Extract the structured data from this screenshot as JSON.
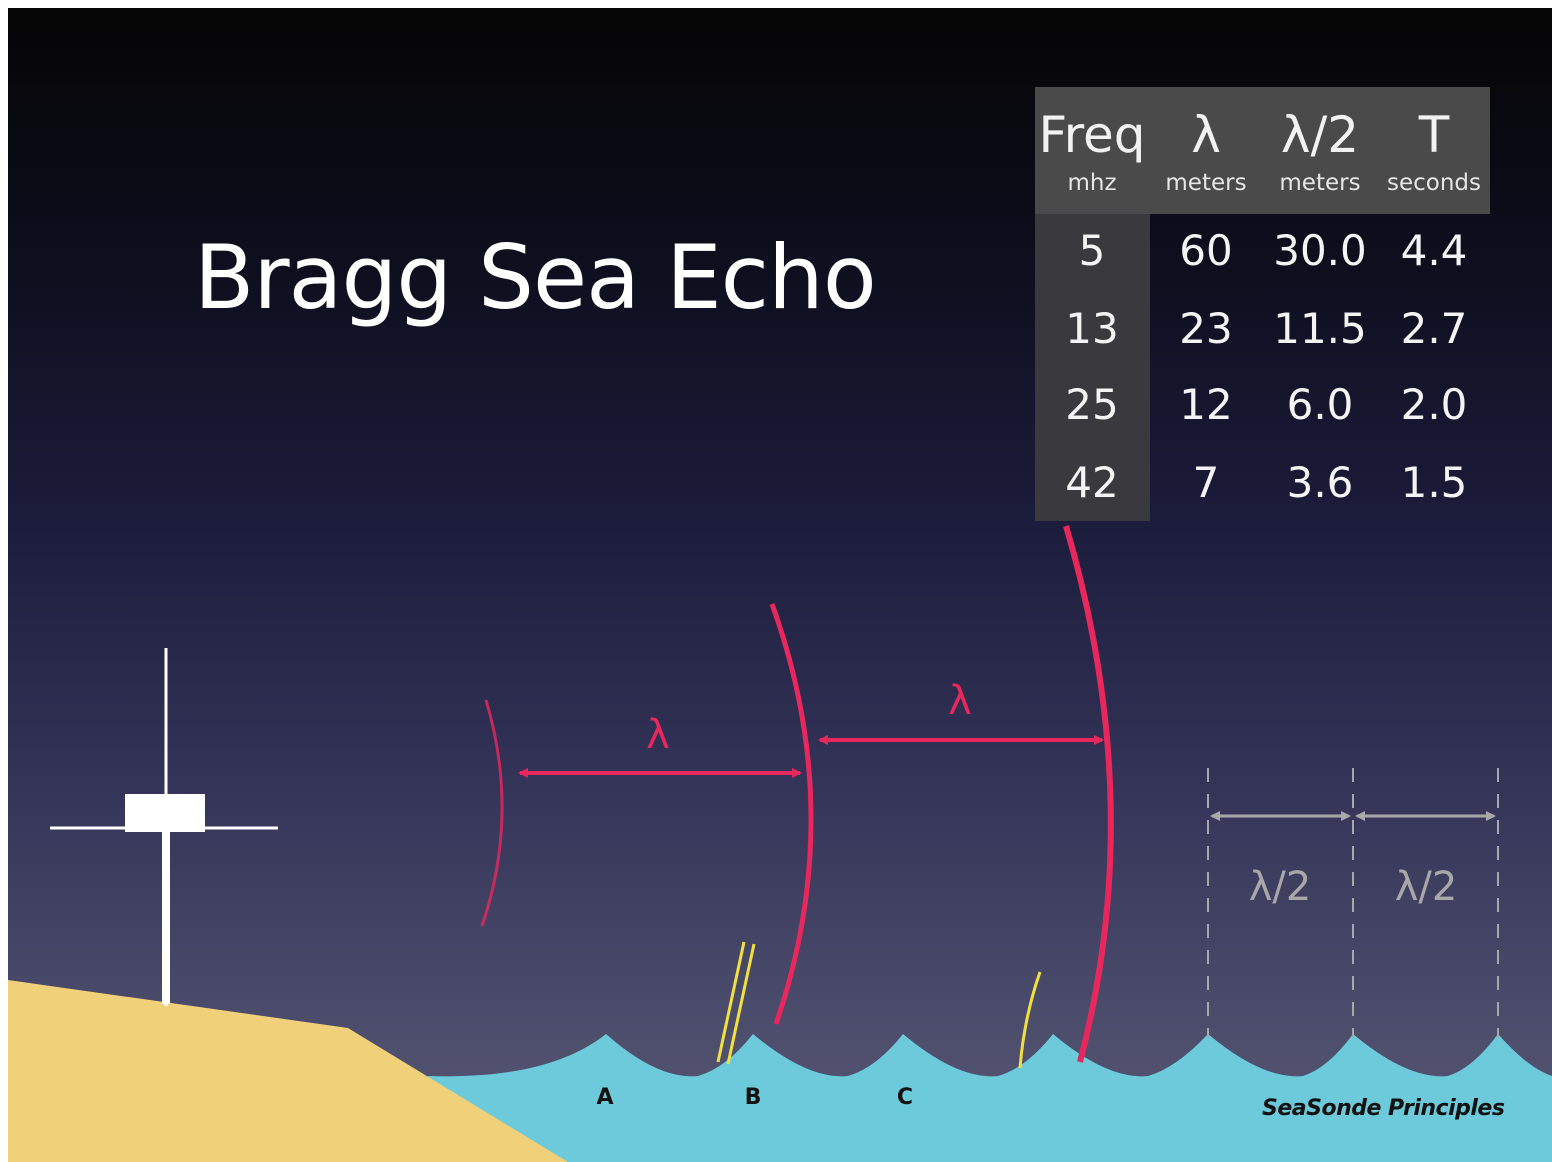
{
  "slide": {
    "title": "Bragg Sea Echo",
    "credit": "SeaSonde Principles"
  },
  "table": {
    "headers": [
      {
        "symbol": "Freq",
        "unit": "mhz"
      },
      {
        "symbol": "λ",
        "unit": "meters"
      },
      {
        "symbol": "λ/2",
        "unit": "meters"
      },
      {
        "symbol": "T",
        "unit": "seconds"
      }
    ],
    "rows": [
      [
        "5",
        "60",
        "30.0",
        "4.4"
      ],
      [
        "13",
        "23",
        "11.5",
        "2.7"
      ],
      [
        "25",
        "12",
        "6.0",
        "2.0"
      ],
      [
        "42",
        "7",
        "3.6",
        "1.5"
      ]
    ]
  },
  "diagram": {
    "wavelength_label": "λ",
    "half_wavelength_label": "λ/2",
    "points": [
      "A",
      "B",
      "C"
    ],
    "colors": {
      "radar_wave": "#e8285c",
      "scatter": "#f0e040",
      "sea": "#6ccadb",
      "land": "#f0d078",
      "guide": "#a8a8a8",
      "antenna": "#ffffff"
    }
  }
}
